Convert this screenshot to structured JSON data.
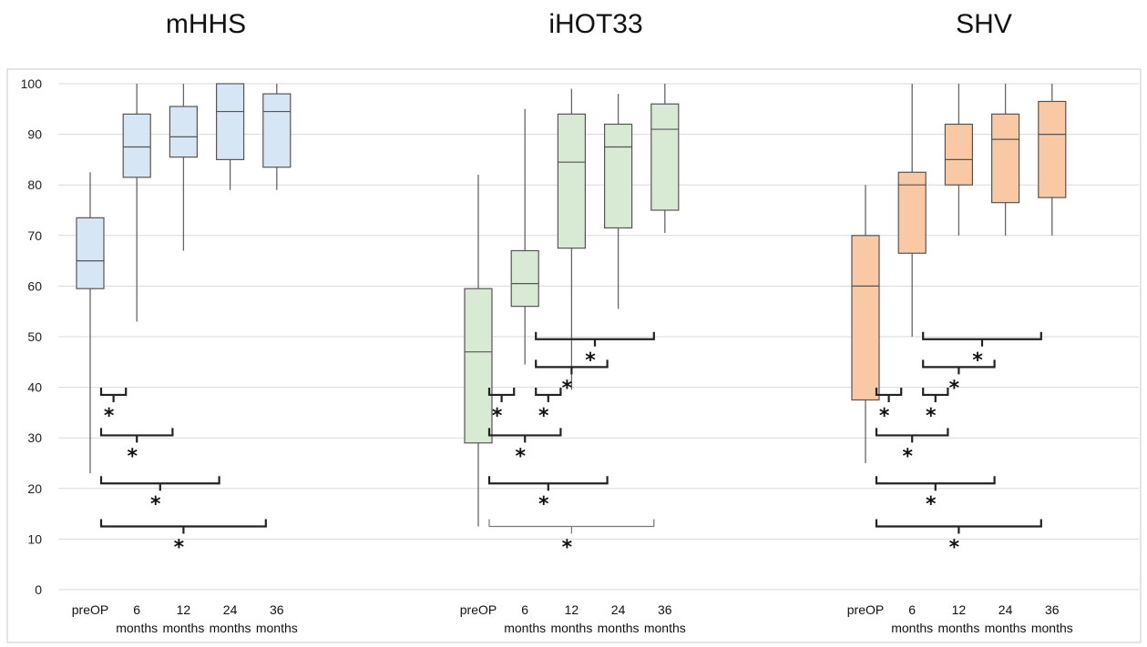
{
  "chart_data": {
    "type": "box",
    "ylim": [
      0,
      100
    ],
    "yticks": [
      0,
      10,
      20,
      30,
      40,
      50,
      60,
      70,
      80,
      90,
      100
    ],
    "grid": true,
    "categories": [
      [
        "preOP"
      ],
      [
        "6",
        "months"
      ],
      [
        "12",
        "months"
      ],
      [
        "24",
        "months"
      ],
      [
        "36",
        "months"
      ]
    ],
    "panels": [
      {
        "title": "mHHS",
        "color": "#d6e6f5",
        "boxes": [
          {
            "min": 23,
            "q1": 59.5,
            "median": 65,
            "q3": 73.5,
            "max": 82.5
          },
          {
            "min": 53,
            "q1": 81.5,
            "median": 87.5,
            "q3": 94,
            "max": 100
          },
          {
            "min": 67,
            "q1": 85.5,
            "median": 89.5,
            "q3": 95.5,
            "max": 100
          },
          {
            "min": 79,
            "q1": 85,
            "median": 94.5,
            "q3": 100,
            "max": 100
          },
          {
            "min": 79,
            "q1": 83.5,
            "median": 94.5,
            "q3": 98,
            "max": 100
          }
        ],
        "significance": [
          {
            "from": 0,
            "to": 1,
            "y": 38.5,
            "label": "*"
          },
          {
            "from": 0,
            "to": 2,
            "y": 30.5,
            "label": "*"
          },
          {
            "from": 0,
            "to": 3,
            "y": 21,
            "label": "*"
          },
          {
            "from": 0,
            "to": 4,
            "y": 12.5,
            "label": "*"
          }
        ]
      },
      {
        "title": "iHOT33",
        "color": "#d8ead3",
        "boxes": [
          {
            "min": 12.5,
            "q1": 29,
            "median": 47,
            "q3": 59.5,
            "max": 82
          },
          {
            "min": 44.5,
            "q1": 56,
            "median": 60.5,
            "q3": 67,
            "max": 95
          },
          {
            "min": 39.5,
            "q1": 67.5,
            "median": 84.5,
            "q3": 94,
            "max": 99
          },
          {
            "min": 55.5,
            "q1": 71.5,
            "median": 87.5,
            "q3": 92,
            "max": 98
          },
          {
            "min": 70.5,
            "q1": 75,
            "median": 91,
            "q3": 96,
            "max": 100
          }
        ],
        "significance": [
          {
            "from": 1,
            "to": 4,
            "y": 49.5,
            "label": "*"
          },
          {
            "from": 1,
            "to": 3,
            "y": 44,
            "label": "*"
          },
          {
            "from": 0,
            "to": 1,
            "y": 38.5,
            "label": "*"
          },
          {
            "from": 1,
            "to": 2,
            "y": 38.5,
            "label": "*"
          },
          {
            "from": 0,
            "to": 2,
            "y": 30.5,
            "label": "*"
          },
          {
            "from": 0,
            "to": 3,
            "y": 21,
            "label": "*"
          },
          {
            "from": 0,
            "to": 4,
            "y": 12.5,
            "label": "*",
            "thin": true
          }
        ]
      },
      {
        "title": "SHV",
        "color": "#f9c8a5",
        "boxes": [
          {
            "min": 25,
            "q1": 37.5,
            "median": 60,
            "q3": 70,
            "max": 80
          },
          {
            "min": 50,
            "q1": 66.5,
            "median": 80,
            "q3": 82.5,
            "max": 100
          },
          {
            "min": 70,
            "q1": 80,
            "median": 85,
            "q3": 92,
            "max": 100
          },
          {
            "min": 70,
            "q1": 76.5,
            "median": 89,
            "q3": 94,
            "max": 100
          },
          {
            "min": 70,
            "q1": 77.5,
            "median": 90,
            "q3": 96.5,
            "max": 100
          }
        ],
        "significance": [
          {
            "from": 1,
            "to": 4,
            "y": 49.5,
            "label": "*"
          },
          {
            "from": 1,
            "to": 3,
            "y": 44,
            "label": "*"
          },
          {
            "from": 0,
            "to": 1,
            "y": 38.5,
            "label": "*"
          },
          {
            "from": 1,
            "to": 2,
            "y": 38.5,
            "label": "*"
          },
          {
            "from": 0,
            "to": 2,
            "y": 30.5,
            "label": "*"
          },
          {
            "from": 0,
            "to": 3,
            "y": 21,
            "label": "*"
          },
          {
            "from": 0,
            "to": 4,
            "y": 12.5,
            "label": "*"
          }
        ]
      }
    ]
  }
}
